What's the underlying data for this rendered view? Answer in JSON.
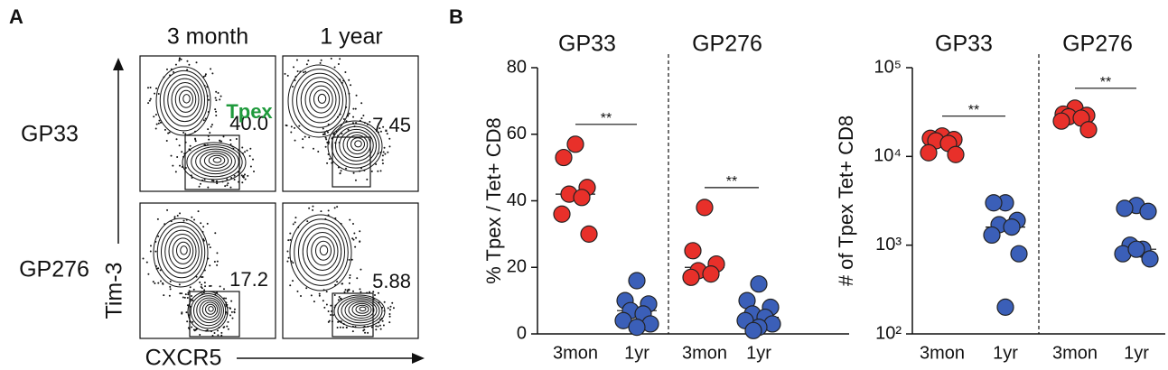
{
  "panel_labels": [
    "A",
    "B"
  ],
  "flow": {
    "columns": [
      "3 month",
      "1 year"
    ],
    "rows": [
      "GP33",
      "GP276"
    ],
    "y_label": "Tim-3",
    "x_label": "CXCR5",
    "gate_label": "Tpex",
    "gate_values": [
      [
        "40.0",
        "7.45"
      ],
      [
        "17.2",
        "5.88"
      ]
    ]
  },
  "chart_data": [
    {
      "type": "dot",
      "ylabel": "% Tpex / Tet+ CD8",
      "groups": [
        "GP33",
        "GP276"
      ],
      "categories": [
        "3mon",
        "1yr",
        "3mon",
        "1yr"
      ],
      "colors": [
        "#e8302a",
        "#3b5fb8",
        "#e8302a",
        "#3b5fb8"
      ],
      "points": [
        [
          57,
          53,
          44,
          42,
          41,
          36,
          30
        ],
        [
          16,
          10,
          9,
          7,
          6,
          4,
          3,
          2
        ],
        [
          38,
          25,
          21,
          19,
          18,
          17
        ],
        [
          15,
          10,
          8,
          6,
          5,
          4,
          3,
          2,
          1
        ]
      ],
      "medians": [
        42,
        7,
        20,
        5
      ],
      "significance": [
        "**",
        "**"
      ],
      "ylim": [
        0,
        80
      ],
      "yticks": [
        0,
        20,
        40,
        60,
        80
      ],
      "log": false
    },
    {
      "type": "dot",
      "ylabel": "# of Tpex Tet+ CD8",
      "groups": [
        "GP33",
        "GP276"
      ],
      "categories": [
        "3mon",
        "1yr",
        "3mon",
        "1yr"
      ],
      "colors": [
        "#e8302a",
        "#3b5fb8",
        "#e8302a",
        "#3b5fb8"
      ],
      "points": [
        [
          17000,
          16000,
          15500,
          15000,
          14000,
          11000,
          10500
        ],
        [
          3000,
          3000,
          1900,
          1700,
          1600,
          1300,
          800,
          200
        ],
        [
          35000,
          30000,
          29000,
          28000,
          27000,
          25000,
          20000
        ],
        [
          2800,
          2600,
          2400,
          1000,
          900,
          800,
          700,
          900
        ]
      ],
      "medians": [
        15000,
        1600,
        28000,
        900
      ],
      "significance": [
        "**",
        "**"
      ],
      "ylim": [
        100,
        100000
      ],
      "yticks": [
        {
          "value": 100,
          "label": "10²"
        },
        {
          "value": 1000,
          "label": "10³"
        },
        {
          "value": 10000,
          "label": "10⁴"
        },
        {
          "value": 100000,
          "label": "10⁵"
        }
      ],
      "log": true
    }
  ]
}
